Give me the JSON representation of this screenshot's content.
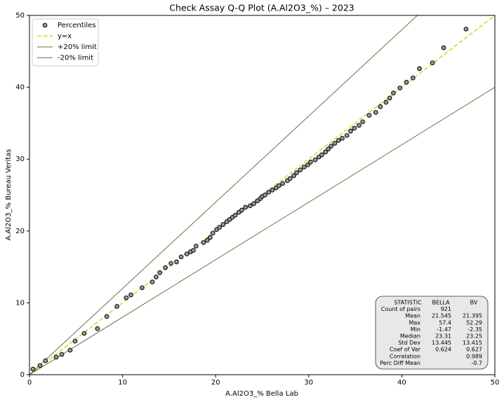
{
  "chart_data": {
    "type": "scatter",
    "title": "Check Assay Q-Q Plot (A.Al2O3_%) – 2023",
    "x_label": "A.Al2O3_% Bella Lab",
    "y_label": "A.Al2O3_% Bureau Veritas",
    "xlim": [
      0,
      50
    ],
    "ylim": [
      0,
      50
    ],
    "xticks": [
      0,
      10,
      20,
      30,
      40,
      50
    ],
    "yticks": [
      0,
      10,
      20,
      30,
      40,
      50
    ],
    "grid": false,
    "legend": "upper left",
    "series": [
      {
        "name": "Percentiles",
        "style": "markers",
        "color": "#9a9a9a",
        "x": [
          0.38,
          1.13,
          1.73,
          2.87,
          3.47,
          4.37,
          4.9,
          5.88,
          7.3,
          8.3,
          9.4,
          10.4,
          10.9,
          12.1,
          13.2,
          13.6,
          14.0,
          14.6,
          15.2,
          15.8,
          16.3,
          16.9,
          17.3,
          17.6,
          17.9,
          18.7,
          19.1,
          19.4,
          19.7,
          20.1,
          20.4,
          20.8,
          21.2,
          21.5,
          21.8,
          22.1,
          22.5,
          22.8,
          23.2,
          23.7,
          24.1,
          24.5,
          24.8,
          25.0,
          25.3,
          25.7,
          26.1,
          26.5,
          26.8,
          27.2,
          27.7,
          28.0,
          28.4,
          28.7,
          29.1,
          29.5,
          29.9,
          30.2,
          30.7,
          31.1,
          31.4,
          31.8,
          32.1,
          32.4,
          32.8,
          33.2,
          33.6,
          34.1,
          34.5,
          34.9,
          35.4,
          35.8,
          36.5,
          37.2,
          37.7,
          38.3,
          38.7,
          39.1,
          39.8,
          40.5,
          41.2,
          41.9,
          43.3,
          44.5,
          46.9
        ],
        "values": [
          0.78,
          1.27,
          1.95,
          2.44,
          2.83,
          3.41,
          4.68,
          5.75,
          6.4,
          8.1,
          9.5,
          10.7,
          11.1,
          12.1,
          12.9,
          13.6,
          14.2,
          14.9,
          15.5,
          15.7,
          16.4,
          16.8,
          17.1,
          17.3,
          17.9,
          18.4,
          18.7,
          19.1,
          19.7,
          20.2,
          20.5,
          20.9,
          21.3,
          21.6,
          21.9,
          22.2,
          22.6,
          22.9,
          23.3,
          23.5,
          23.8,
          24.2,
          24.5,
          24.8,
          25.0,
          25.4,
          25.7,
          26.0,
          26.3,
          26.6,
          27.0,
          27.3,
          27.7,
          28.1,
          28.5,
          28.9,
          29.2,
          29.6,
          29.9,
          30.3,
          30.6,
          31.0,
          31.4,
          31.8,
          32.2,
          32.6,
          32.9,
          33.3,
          33.9,
          34.3,
          34.7,
          35.2,
          36.1,
          36.5,
          37.3,
          37.9,
          38.5,
          39.2,
          39.9,
          40.7,
          41.3,
          42.6,
          43.4,
          45.5,
          48.1
        ]
      },
      {
        "name": "y=x",
        "style": "dashed",
        "color": "#b5e61d",
        "x": [
          0,
          50
        ],
        "values": [
          0,
          50
        ]
      },
      {
        "name": "+20% limit",
        "style": "solid",
        "color": "#6b7340",
        "x": [
          0,
          41.67
        ],
        "values": [
          0,
          50
        ]
      },
      {
        "name": "-20% limit",
        "style": "solid",
        "color": "#6b7340",
        "x": [
          0,
          50
        ],
        "values": [
          0,
          40
        ]
      }
    ],
    "stats_table": {
      "columns": [
        "STATISTIC",
        "BELLA",
        "BV"
      ],
      "rows": [
        {
          "label": "Count of pairs",
          "bella": 921
        },
        {
          "label": "Mean",
          "bella": 21.545,
          "bv": 21.395
        },
        {
          "label": "Max",
          "bella": 57.4,
          "bv": 52.29
        },
        {
          "label": "Min",
          "bella": -1.47,
          "bv": -2.35
        },
        {
          "label": "Median",
          "bella": 23.31,
          "bv": 23.25
        },
        {
          "label": "Std Dev",
          "bella": 13.445,
          "bv": 13.415
        },
        {
          "label": "Coef of Var",
          "bella": 0.624,
          "bv": 0.627
        },
        {
          "label": "Correlation",
          "bv": 0.989
        },
        {
          "label": "Perc Diff Mean",
          "bv": -0.7
        }
      ]
    }
  }
}
